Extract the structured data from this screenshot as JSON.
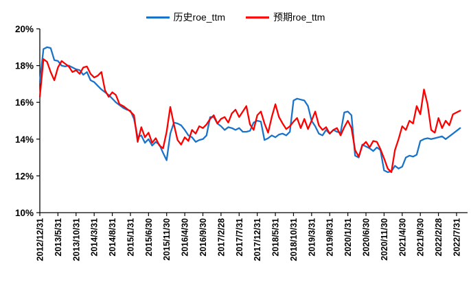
{
  "legend": {
    "series1_label": "历史roe_ttm",
    "series2_label": "预期roe_ttm"
  },
  "colors": {
    "history_line": "#1973c8",
    "expected_line": "#fc0000",
    "axis": "#000000",
    "tick_label": "#000000"
  },
  "chart_data": {
    "type": "line",
    "title": "",
    "xlabel": "",
    "ylabel": "",
    "ylim": [
      10,
      20
    ],
    "grid": false,
    "legend_position": "top-center",
    "y_tick_labels": [
      "20%",
      "18%",
      "16%",
      "14%",
      "12%",
      "10%"
    ],
    "y_tick_values": [
      20,
      18,
      16,
      14,
      12,
      10
    ],
    "x_tick_interval_months": 5,
    "x_tick_labels": [
      "2012/12/31",
      "2013/5/31",
      "2013/10/31",
      "2014/3/31",
      "2014/8/31",
      "2015/1/31",
      "2015/6/30",
      "2015/11/30",
      "2016/4/30",
      "2016/9/30",
      "2017/2/28",
      "2017/7/31",
      "2017/12/31",
      "2018/5/31",
      "2018/10/31",
      "2019/3/31",
      "2019/8/31",
      "2020/1/31",
      "2020/6/30",
      "2020/11/30",
      "2021/4/30",
      "2021/9/30",
      "2022/2/28",
      "2022/7/31"
    ],
    "x_start_month": "2012/12",
    "x_monthly_points": 117,
    "series": [
      {
        "name": "历史roe_ttm",
        "color": "#1973c8",
        "values": [
          17.1,
          18.9,
          19.0,
          18.95,
          18.3,
          18.25,
          18.0,
          17.95,
          18.0,
          17.9,
          17.8,
          17.75,
          17.5,
          17.65,
          17.2,
          17.1,
          16.9,
          16.7,
          16.55,
          16.4,
          16.2,
          16.0,
          15.85,
          15.7,
          15.6,
          15.55,
          15.1,
          14.1,
          14.2,
          13.8,
          14.0,
          13.65,
          13.85,
          13.7,
          13.25,
          12.85,
          14.3,
          14.9,
          14.85,
          14.75,
          14.5,
          14.2,
          14.1,
          13.85,
          13.95,
          14.0,
          14.2,
          15.2,
          15.2,
          14.85,
          14.7,
          14.5,
          14.65,
          14.6,
          14.5,
          14.6,
          14.4,
          14.4,
          14.45,
          14.9,
          15.0,
          14.95,
          13.95,
          14.05,
          14.2,
          14.1,
          14.25,
          14.3,
          14.2,
          14.4,
          16.1,
          16.2,
          16.15,
          16.1,
          15.8,
          15.0,
          14.7,
          14.3,
          14.2,
          14.5,
          14.3,
          14.5,
          14.4,
          14.35,
          15.45,
          15.5,
          15.3,
          13.1,
          13.0,
          13.7,
          13.6,
          13.5,
          13.35,
          13.55,
          13.4,
          12.3,
          12.2,
          12.25,
          12.55,
          12.4,
          12.5,
          13.0,
          13.1,
          13.05,
          13.15,
          13.9,
          14.0,
          14.05,
          14.0,
          14.05,
          14.1,
          14.15,
          14.0,
          14.15,
          14.3,
          14.45,
          14.6
        ]
      },
      {
        "name": "预期roe_ttm",
        "color": "#fc0000",
        "values": [
          16.3,
          18.35,
          18.2,
          17.65,
          17.2,
          17.9,
          18.25,
          18.1,
          17.95,
          17.65,
          17.75,
          17.55,
          17.9,
          17.95,
          17.55,
          17.35,
          17.45,
          17.65,
          16.65,
          16.3,
          16.55,
          16.4,
          15.9,
          15.8,
          15.65,
          15.5,
          15.3,
          13.85,
          14.65,
          14.1,
          14.35,
          13.8,
          14.05,
          13.65,
          13.5,
          14.4,
          15.75,
          14.8,
          13.95,
          13.7,
          14.1,
          13.9,
          14.5,
          14.3,
          14.7,
          14.6,
          14.8,
          15.1,
          15.3,
          14.85,
          15.1,
          15.2,
          14.9,
          15.4,
          15.6,
          15.2,
          15.5,
          15.8,
          14.8,
          14.5,
          15.3,
          15.5,
          14.85,
          14.35,
          15.2,
          15.9,
          15.2,
          14.85,
          14.55,
          14.7,
          14.95,
          15.15,
          14.6,
          15.1,
          14.55,
          15.0,
          15.5,
          14.75,
          14.5,
          14.65,
          14.3,
          14.5,
          14.6,
          14.2,
          14.65,
          15.0,
          14.6,
          13.4,
          13.05,
          13.65,
          13.85,
          13.55,
          13.9,
          13.85,
          13.45,
          12.95,
          12.4,
          12.2,
          13.4,
          14.0,
          14.7,
          14.5,
          15.0,
          14.85,
          15.8,
          15.35,
          16.7,
          15.9,
          14.5,
          14.35,
          15.15,
          14.6,
          15.0,
          14.75,
          15.35,
          15.45,
          15.55
        ]
      }
    ]
  }
}
